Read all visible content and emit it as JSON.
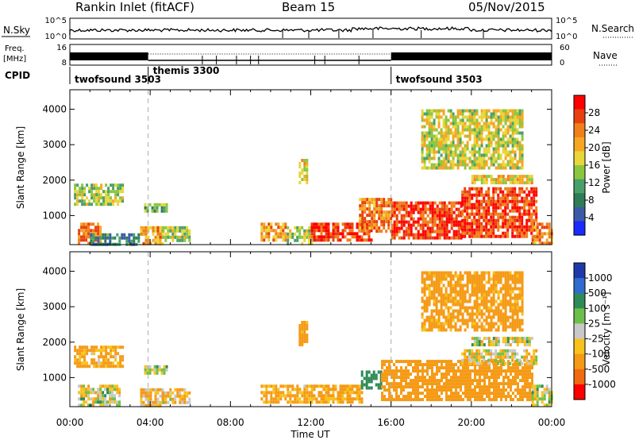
{
  "header": {
    "station": "Rankin Inlet (fitACF)",
    "beam": "Beam 15",
    "date": "05/Nov/2015"
  },
  "strips": {
    "nsky_label": "N.Sky",
    "nsky_ticks": [
      "10^5",
      "10^0"
    ],
    "nsearch_label": "N.Search",
    "nsearch_ticks": [
      "10^5",
      "10^0"
    ],
    "freq_label": "Freq.",
    "freq_unit": "[MHz]",
    "freq_ticks": [
      "8",
      "16"
    ],
    "nave_label": "Nave",
    "nave_ticks": [
      "60",
      "0"
    ],
    "cpid_label": "CPID",
    "cpid_segments": [
      {
        "name": "twofsound 3503",
        "start": 0.0,
        "end": 3.9
      },
      {
        "name": "themis 3300",
        "start": 3.9,
        "end": 16.0
      },
      {
        "name": "twofsound 3503",
        "start": 16.0,
        "end": 24.0
      }
    ]
  },
  "xaxis": {
    "label": "Time UT",
    "ticks": [
      "00:00",
      "04:00",
      "08:00",
      "12:00",
      "16:00",
      "20:00",
      "00:00"
    ]
  },
  "colorbars": {
    "power": {
      "label": "Power [dB]",
      "ticks": [
        "4",
        "8",
        "12",
        "16",
        "20",
        "24",
        "28"
      ],
      "colors": [
        "#1a2bff",
        "#3a5aa8",
        "#2e7d57",
        "#4aa06a",
        "#8cc63f",
        "#e8d63a",
        "#f5a623",
        "#f07f1a",
        "#e8400f",
        "#ff0000"
      ]
    },
    "velocity": {
      "label": "Velocity [m s⁻¹]",
      "ticks": [
        "1000",
        "500",
        "100",
        "25",
        "-25",
        "-100",
        "-500",
        "-1000"
      ],
      "colors": [
        "#1e3aa8",
        "#2f6bd0",
        "#2e8b57",
        "#6cc04a",
        "#c8c8c8",
        "#f7c21a",
        "#f59a16",
        "#f06a10",
        "#ff0000"
      ]
    }
  },
  "chart_data": [
    {
      "type": "heatmap",
      "title": "",
      "variable": "Power",
      "xlabel": "",
      "ylabel": "Slant Range [km]",
      "xlim": [
        0,
        24
      ],
      "ylim": [
        180,
        4550
      ],
      "yticks": [
        1000,
        2000,
        3000,
        4000
      ],
      "color_range": [
        0,
        30
      ],
      "regions": [
        {
          "t0": 0.2,
          "t1": 2.6,
          "r0": 1300,
          "r1": 1900,
          "level": 14
        },
        {
          "t0": 0.4,
          "t1": 1.5,
          "r0": 250,
          "r1": 800,
          "level": 22
        },
        {
          "t0": 1.0,
          "t1": 3.4,
          "r0": 220,
          "r1": 500,
          "level": 8
        },
        {
          "t0": 3.5,
          "t1": 4.6,
          "r0": 250,
          "r1": 700,
          "level": 20
        },
        {
          "t0": 3.7,
          "t1": 4.8,
          "r0": 1100,
          "r1": 1350,
          "level": 12
        },
        {
          "t0": 4.6,
          "t1": 6.0,
          "r0": 300,
          "r1": 700,
          "level": 14
        },
        {
          "t0": 9.5,
          "t1": 10.8,
          "r0": 300,
          "r1": 800,
          "level": 20
        },
        {
          "t0": 10.8,
          "t1": 12.0,
          "r0": 250,
          "r1": 700,
          "level": 14
        },
        {
          "t0": 11.4,
          "t1": 11.8,
          "r0": 1900,
          "r1": 2600,
          "level": 18
        },
        {
          "t0": 12.0,
          "t1": 15.0,
          "r0": 300,
          "r1": 800,
          "level": 26
        },
        {
          "t0": 14.4,
          "t1": 16.0,
          "r0": 600,
          "r1": 1500,
          "level": 22
        },
        {
          "t0": 16.0,
          "t1": 19.5,
          "r0": 400,
          "r1": 1400,
          "level": 26
        },
        {
          "t0": 19.5,
          "t1": 23.2,
          "r0": 400,
          "r1": 1800,
          "level": 26
        },
        {
          "t0": 20.0,
          "t1": 23.0,
          "r0": 1950,
          "r1": 2150,
          "level": 18
        },
        {
          "t0": 17.5,
          "t1": 22.5,
          "r0": 2300,
          "r1": 4000,
          "level": 16
        },
        {
          "t0": 23.0,
          "t1": 24.0,
          "r0": 200,
          "r1": 800,
          "level": 22
        }
      ]
    },
    {
      "type": "heatmap",
      "title": "",
      "variable": "Velocity",
      "xlabel": "Time UT",
      "ylabel": "Slant Range [km]",
      "xlim": [
        0,
        24
      ],
      "ylim": [
        180,
        4550
      ],
      "yticks": [
        1000,
        2000,
        3000,
        4000
      ],
      "color_range": [
        -1000,
        1000
      ],
      "regions": [
        {
          "t0": 0.2,
          "t1": 2.6,
          "r0": 1300,
          "r1": 1900,
          "level": -150
        },
        {
          "t0": 0.4,
          "t1": 2.5,
          "r0": 250,
          "r1": 800,
          "level": 0
        },
        {
          "t0": 3.5,
          "t1": 4.6,
          "r0": 250,
          "r1": 700,
          "level": -120
        },
        {
          "t0": 3.7,
          "t1": 4.8,
          "r0": 1150,
          "r1": 1350,
          "level": 0
        },
        {
          "t0": 4.6,
          "t1": 6.0,
          "r0": 300,
          "r1": 700,
          "level": -100
        },
        {
          "t0": 9.5,
          "t1": 12.0,
          "r0": 300,
          "r1": 800,
          "level": -150
        },
        {
          "t0": 11.4,
          "t1": 11.8,
          "r0": 1900,
          "r1": 2600,
          "level": -200
        },
        {
          "t0": 12.0,
          "t1": 14.5,
          "r0": 300,
          "r1": 800,
          "level": -160
        },
        {
          "t0": 14.5,
          "t1": 15.5,
          "r0": 700,
          "r1": 1200,
          "level": 300
        },
        {
          "t0": 15.5,
          "t1": 23.0,
          "r0": 400,
          "r1": 1500,
          "level": -250
        },
        {
          "t0": 19.5,
          "t1": 23.2,
          "r0": 1400,
          "r1": 1800,
          "level": -50
        },
        {
          "t0": 20.0,
          "t1": 23.0,
          "r0": 1950,
          "r1": 2150,
          "level": 0
        },
        {
          "t0": 17.5,
          "t1": 22.5,
          "r0": 2300,
          "r1": 4000,
          "level": -200
        },
        {
          "t0": 23.0,
          "t1": 24.0,
          "r0": 200,
          "r1": 800,
          "level": 0
        }
      ]
    }
  ]
}
